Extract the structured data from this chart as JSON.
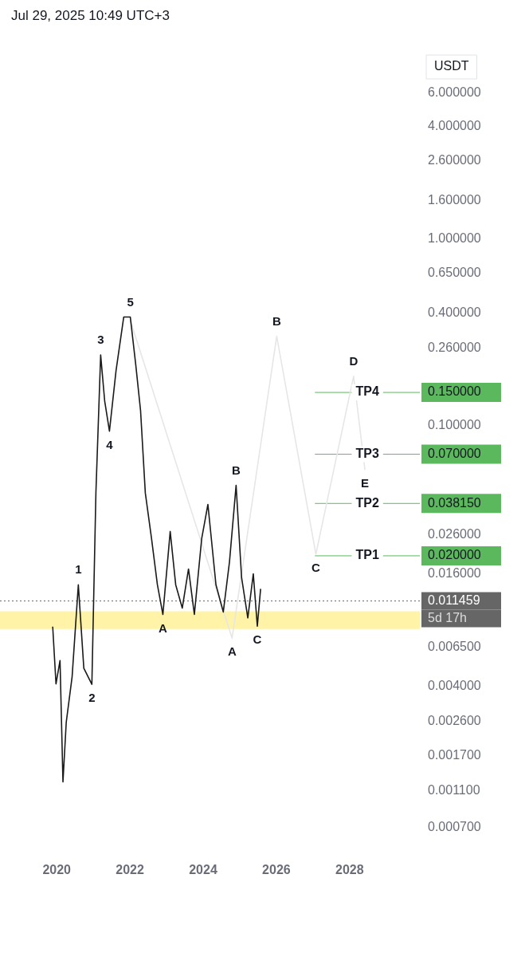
{
  "chart_data": {
    "type": "line",
    "title": "Jul 29, 2025 10:49 UTC+3",
    "ylabel": "USDT",
    "log": "y",
    "xlim": [
      2018.45,
      2029.92
    ],
    "xticks": [
      2020,
      2022,
      2024,
      2026,
      2028
    ],
    "ylim": [
      0.0007,
      6
    ],
    "yticks": [
      {
        "value": 6,
        "label": "6.000000"
      },
      {
        "value": 4,
        "label": "4.000000"
      },
      {
        "value": 2.6,
        "label": "2.600000"
      },
      {
        "value": 1.6,
        "label": "1.600000"
      },
      {
        "value": 1,
        "label": "1.000000"
      },
      {
        "value": 0.65,
        "label": "0.650000"
      },
      {
        "value": 0.4,
        "label": "0.400000"
      },
      {
        "value": 0.26,
        "label": "0.260000"
      },
      {
        "value": 0.15,
        "label": "0.150000"
      },
      {
        "value": 0.1,
        "label": "0.100000"
      },
      {
        "value": 0.07,
        "label": "0.070000"
      },
      {
        "value": 0.03815,
        "label": "0.038150"
      },
      {
        "value": 0.026,
        "label": "0.026000"
      },
      {
        "value": 0.02,
        "label": "0.020000"
      },
      {
        "value": 0.016,
        "label": "0.016000"
      },
      {
        "value": 0.011459,
        "label": "0.011459"
      },
      {
        "value": 0.0065,
        "label": "0.006500"
      },
      {
        "value": 0.004,
        "label": "0.004000"
      },
      {
        "value": 0.0026,
        "label": "0.002600"
      },
      {
        "value": 0.0017,
        "label": "0.001700"
      },
      {
        "value": 0.0011,
        "label": "0.001100"
      },
      {
        "value": 0.0007,
        "label": "0.000700"
      }
    ],
    "grid": false,
    "legend": false,
    "marker": "none",
    "series": [
      {
        "color": "#1a1a1a",
        "x": [
          2019.89,
          2019.98,
          2020.09,
          2020.17,
          2020.26,
          2020.42,
          2020.59,
          2020.74,
          2020.96,
          2021.07,
          2021.2,
          2021.31,
          2021.44,
          2021.62,
          2021.83,
          2022.01,
          2022.16,
          2022.29,
          2022.42,
          2022.59,
          2022.75,
          2022.9,
          2023.1,
          2023.25,
          2023.43,
          2023.6,
          2023.76,
          2023.96,
          2024.13,
          2024.35,
          2024.55,
          2024.72,
          2024.9,
          2025.05,
          2025.22,
          2025.37,
          2025.48,
          2025.57
        ],
        "values": [
          0.00835,
          0.00412,
          0.0055,
          0.00123,
          0.00257,
          0.0045,
          0.014,
          0.005,
          0.0041,
          0.0434,
          0.238,
          0.135,
          0.093,
          0.196,
          0.38,
          0.38,
          0.21,
          0.12,
          0.0434,
          0.0247,
          0.014,
          0.0097,
          0.027,
          0.014,
          0.0105,
          0.017,
          0.0097,
          0.0247,
          0.0377,
          0.014,
          0.01,
          0.0186,
          0.0477,
          0.0153,
          0.0093,
          0.016,
          0.0084,
          0.0133
        ]
      },
      {
        "color": "#e6e6e6",
        "x": [
          2022.01,
          2024.79,
          2026.01,
          2027.08,
          2028.11,
          2028.42
        ],
        "values": [
          0.365,
          0.00725,
          0.3,
          0.0204,
          0.183,
          0.0577
        ]
      }
    ],
    "ref_lines": [
      {
        "axis": "y",
        "value": 0.15,
        "label": "TP4",
        "color": "#5cb85c"
      },
      {
        "axis": "y",
        "value": 0.07,
        "label": "TP3",
        "color": "#5cb85c"
      },
      {
        "axis": "y",
        "value": 0.03815,
        "label": "TP2",
        "color": "#5cb85c"
      },
      {
        "axis": "y",
        "value": 0.02,
        "label": "TP1",
        "color": "#5cb85c"
      },
      {
        "axis": "y",
        "value": 0.011459,
        "color": "#666666",
        "line_style": "dotted"
      }
    ],
    "bands": [
      {
        "axis": "y",
        "from": 0.0081,
        "to": 0.0101,
        "color": "#fff3a8"
      }
    ],
    "annotations": [
      "5d 17h",
      {
        "text": "1",
        "x": 2020.59,
        "y": 0.014
      },
      {
        "text": "2",
        "x": 2020.96,
        "y": 0.0041
      },
      {
        "text": "3",
        "x": 2021.2,
        "y": 0.238
      },
      {
        "text": "4",
        "x": 2021.44,
        "y": 0.093
      },
      {
        "text": "5",
        "x": 2022.01,
        "y": 0.38
      },
      {
        "text": "A",
        "x": 2022.9,
        "y": 0.0097
      },
      {
        "text": "B",
        "x": 2024.9,
        "y": 0.0477
      },
      {
        "text": "C",
        "x": 2025.48,
        "y": 0.0084
      },
      {
        "text": "A",
        "x": 2024.79,
        "y": 0.00725
      },
      {
        "text": "B",
        "x": 2026.01,
        "y": 0.3
      },
      {
        "text": "C",
        "x": 2027.08,
        "y": 0.0204
      },
      {
        "text": "D",
        "x": 2028.11,
        "y": 0.183
      },
      {
        "text": "E",
        "x": 2028.42,
        "y": 0.0577
      }
    ]
  }
}
